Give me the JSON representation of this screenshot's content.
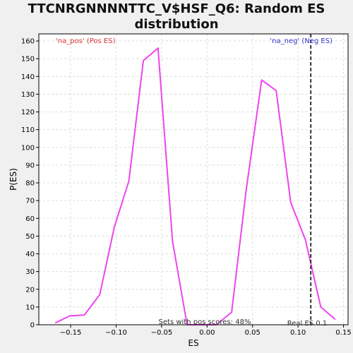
{
  "chart_data": {
    "type": "line",
    "title_lines": [
      "TTCNRGNNNNTTC_V$HSF_Q6: Random ES",
      "distribution"
    ],
    "xlabel": "ES",
    "ylabel": "P(ES)",
    "xlim": [
      -0.185,
      0.155
    ],
    "ylim": [
      0,
      164
    ],
    "x_ticks": [
      -0.15,
      -0.1,
      -0.05,
      0.0,
      0.05,
      0.1,
      0.15
    ],
    "x_tick_labels": [
      "−0.15",
      "−0.10",
      "−0.05",
      "0.00",
      "0.05",
      "0.10",
      "0.15"
    ],
    "y_ticks": [
      0,
      10,
      20,
      30,
      40,
      50,
      60,
      70,
      80,
      90,
      100,
      110,
      120,
      130,
      140,
      150,
      160
    ],
    "grid": true,
    "series": [
      {
        "color": "#ee44ee",
        "x": [
          -0.167,
          -0.151,
          -0.135,
          -0.118,
          -0.102,
          -0.086,
          -0.07,
          -0.054,
          -0.038,
          -0.022,
          -0.006,
          0.01,
          0.027,
          0.043,
          0.06,
          0.076,
          0.092,
          0.108,
          0.125,
          0.141
        ],
        "y": [
          1,
          5,
          5.5,
          17,
          55,
          81,
          149,
          156,
          47,
          0,
          0,
          0,
          7,
          76,
          138,
          132,
          69,
          48,
          10,
          3
        ]
      }
    ],
    "annotations": {
      "pos_label": "'na_pos' (Pos ES)",
      "neg_label": "'na_neg' (Neg ES)",
      "pos_color": "#dd3333",
      "neg_color": "#3333cc",
      "sets_text": "Sets with pos scores: 48%",
      "real_es_text": "Real ES 0.1",
      "real_es_value": 0.114
    }
  }
}
